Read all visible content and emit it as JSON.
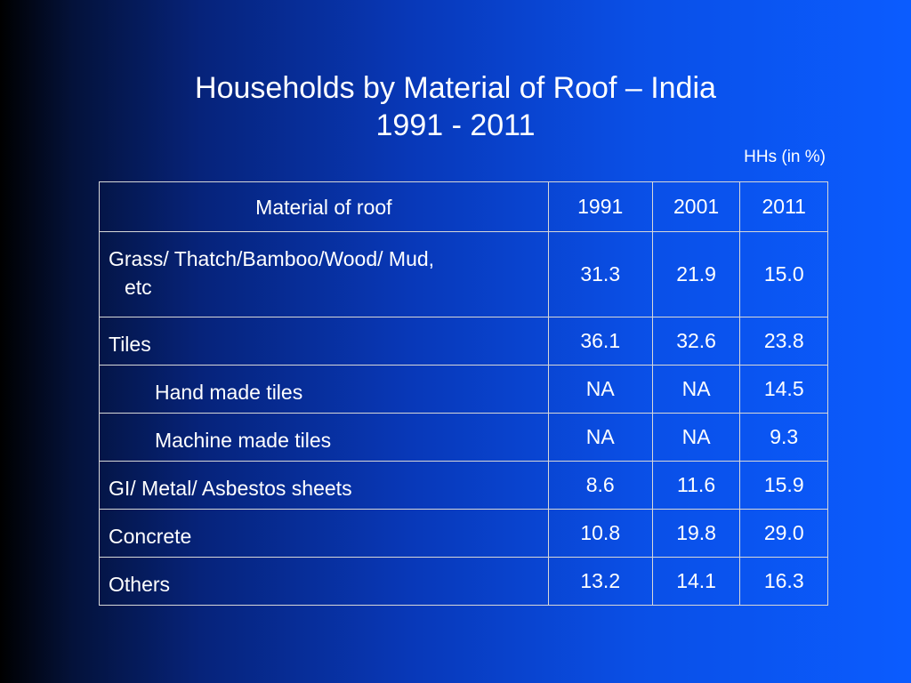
{
  "title": {
    "line1": "Households by Material of Roof – India",
    "line2": "1991 - 2011"
  },
  "unit_note": "HHs (in %)",
  "table": {
    "headers": [
      "Material of roof",
      "1991",
      "2001",
      "2011"
    ],
    "rows": [
      {
        "label": "Grass/ Thatch/Bamboo/Wood/ Mud,",
        "label_cont": "etc",
        "v1991": "31.3",
        "v2001": "21.9",
        "v2011": "15.0"
      },
      {
        "label": "Tiles",
        "v1991": "36.1",
        "v2001": "32.6",
        "v2011": "23.8"
      },
      {
        "label": "Hand made tiles",
        "v1991": "NA",
        "v2001": "NA",
        "v2011": "14.5"
      },
      {
        "label": "Machine made tiles",
        "v1991": "NA",
        "v2001": "NA",
        "v2011": "9.3"
      },
      {
        "label": "GI/ Metal/ Asbestos sheets",
        "v1991": "8.6",
        "v2001": "11.6",
        "v2011": "15.9"
      },
      {
        "label": "Concrete",
        "v1991": "10.8",
        "v2001": "19.8",
        "v2011": "29.0"
      },
      {
        "label": "Others",
        "v1991": "13.2",
        "v2001": "14.1",
        "v2011": "16.3"
      }
    ]
  }
}
